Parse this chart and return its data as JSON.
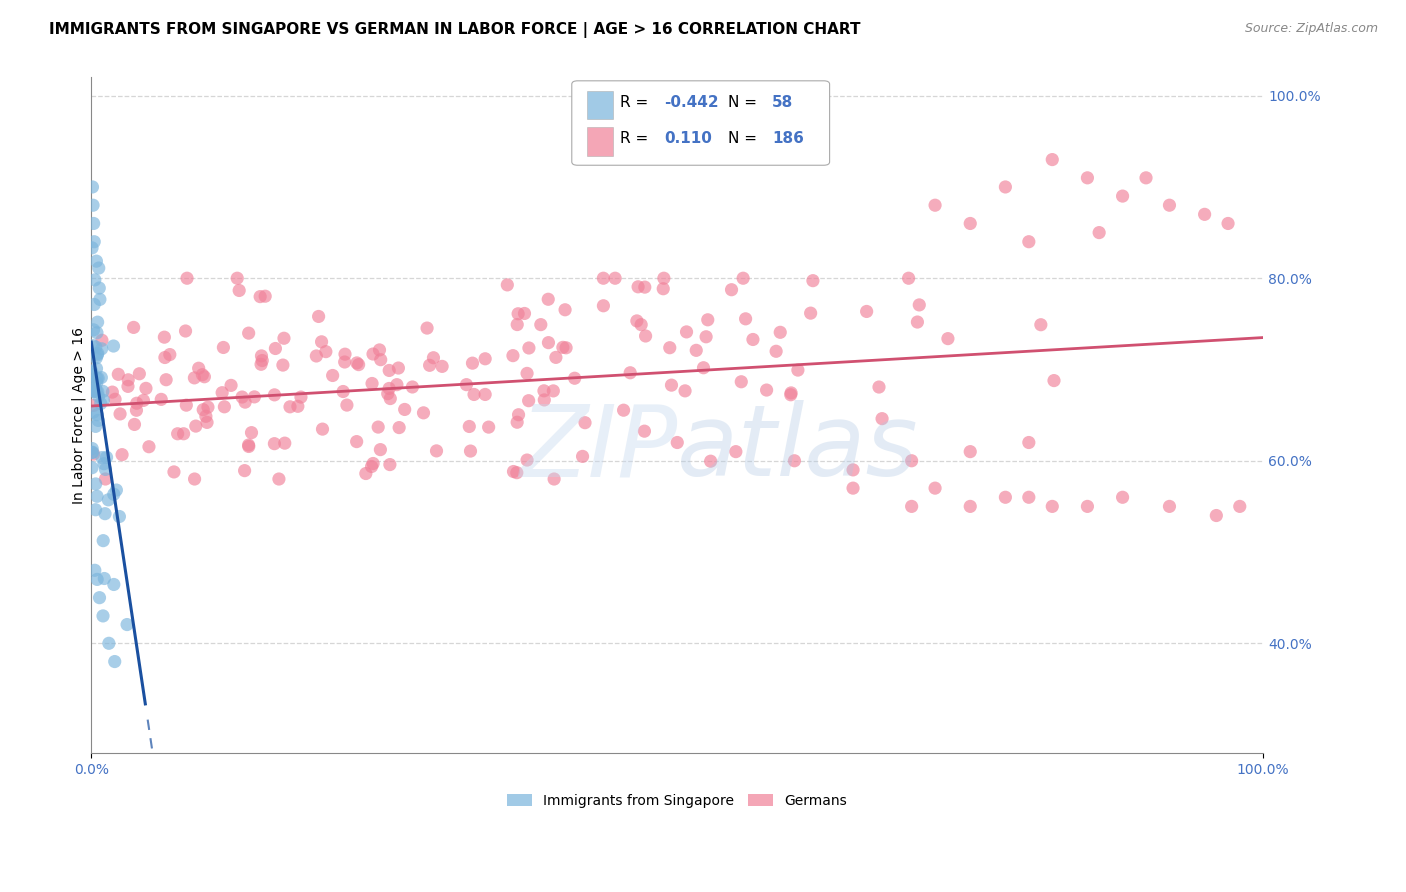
{
  "title": "IMMIGRANTS FROM SINGAPORE VS GERMAN IN LABOR FORCE | AGE > 16 CORRELATION CHART",
  "source": "Source: ZipAtlas.com",
  "ylabel": "In Labor Force | Age > 16",
  "singapore_color": "#7ab4dc",
  "singapore_edge_color": "#5090c0",
  "german_color": "#f08098",
  "german_edge_color": "#d06080",
  "singapore_trend_color": "#1a50a0",
  "german_trend_color": "#d05070",
  "background_color": "#ffffff",
  "grid_color": "#cccccc",
  "tick_color": "#4472c4",
  "xlim": [
    0.0,
    1.0
  ],
  "ylim": [
    0.28,
    1.02
  ],
  "right_yticks": [
    0.4,
    0.6,
    0.8,
    1.0
  ],
  "right_yticklabels": [
    "40.0%",
    "60.0%",
    "80.0%",
    "100.0%"
  ],
  "top_ytick_label": "100.0%",
  "xtick_labels": [
    "0.0%",
    "100.0%"
  ],
  "R_singapore": -0.442,
  "N_singapore": 58,
  "R_german": 0.11,
  "N_german": 186,
  "watermark_text": "ZIPatlas",
  "legend_R_sg": "-0.442",
  "legend_N_sg": "58",
  "legend_R_de": "0.110",
  "legend_N_de": "186",
  "title_fontsize": 11,
  "source_fontsize": 9,
  "legend_fontsize": 11,
  "axis_label_fontsize": 10,
  "tick_fontsize": 10,
  "bottom_legend_labels": [
    "Immigrants from Singapore",
    "Germans"
  ]
}
